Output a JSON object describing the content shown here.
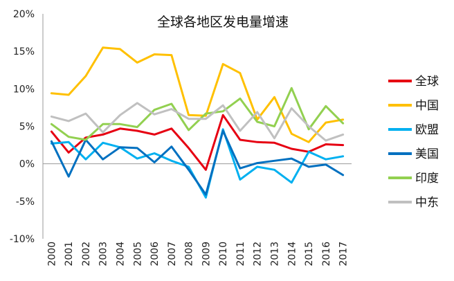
{
  "chart_data": {
    "type": "line",
    "title": "全球各地区发电量增速",
    "xlabel": "",
    "ylabel": "",
    "ylim": [
      -10,
      20
    ],
    "yticks": [
      "20%",
      "15%",
      "10%",
      "5%",
      "0%",
      "-5%",
      "-10%"
    ],
    "ytick_values": [
      20,
      15,
      10,
      5,
      0,
      -5,
      -10
    ],
    "categories": [
      "2000",
      "2001",
      "2002",
      "2003",
      "2004",
      "2005",
      "2006",
      "2007",
      "2008",
      "2009",
      "2010",
      "2011",
      "2012",
      "2013",
      "2014",
      "2015",
      "2016",
      "2017"
    ],
    "legend_position": "right",
    "series": [
      {
        "name": "全球",
        "color": "#e60012",
        "values": [
          4.3,
          1.5,
          3.5,
          3.9,
          4.7,
          4.4,
          3.9,
          4.7,
          2.1,
          -0.8,
          6.5,
          3.2,
          2.9,
          2.8,
          2.0,
          1.6,
          2.6,
          2.5
        ]
      },
      {
        "name": "中国",
        "color": "#ffc000",
        "values": [
          9.4,
          9.2,
          11.7,
          15.5,
          15.3,
          13.5,
          14.6,
          14.5,
          6.5,
          6.4,
          13.3,
          12.1,
          5.9,
          8.9,
          4.0,
          2.9,
          5.5,
          5.9
        ]
      },
      {
        "name": "欧盟",
        "color": "#00b0f0",
        "values": [
          2.7,
          2.9,
          0.6,
          2.8,
          2.2,
          0.7,
          1.4,
          0.4,
          -0.4,
          -4.5,
          4.6,
          -2.1,
          -0.4,
          -0.8,
          -2.5,
          1.6,
          0.6,
          1.0
        ]
      },
      {
        "name": "美国",
        "color": "#0070c0",
        "values": [
          3.0,
          -1.7,
          3.2,
          0.6,
          2.2,
          2.1,
          0.2,
          2.3,
          -0.8,
          -4.1,
          4.4,
          -0.6,
          0.1,
          0.4,
          0.7,
          -0.4,
          -0.1,
          -1.5
        ]
      },
      {
        "name": "印度",
        "color": "#92d050",
        "values": [
          5.3,
          3.6,
          3.2,
          5.3,
          5.3,
          4.9,
          7.2,
          8.0,
          4.5,
          6.7,
          7.0,
          8.7,
          5.6,
          5.0,
          10.1,
          4.6,
          7.7,
          5.4
        ]
      },
      {
        "name": "中东",
        "color": "#c0c0c0",
        "values": [
          6.3,
          5.7,
          6.7,
          4.2,
          6.5,
          8.1,
          6.6,
          7.3,
          6.0,
          6.0,
          7.8,
          4.4,
          6.9,
          3.4,
          7.4,
          5.0,
          3.1,
          3.9
        ]
      }
    ]
  }
}
